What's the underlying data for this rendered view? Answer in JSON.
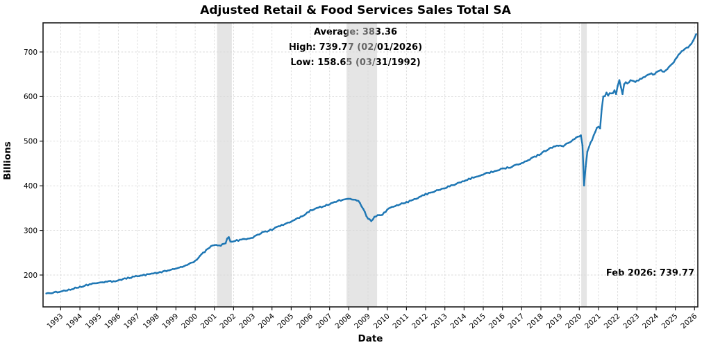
{
  "title": "Adjusted Retail & Food Services Sales Total SA",
  "annotations": {
    "average_line": "Average: 383.36",
    "high_line": "High: 739.77 (02/01/2026)",
    "low_line": "Low: 158.65 (03/31/1992)",
    "last_point_label": "Feb 2026: 739.77"
  },
  "axes": {
    "x_label": "Date",
    "y_label": "Billions",
    "y_ticks": [
      200,
      300,
      400,
      500,
      600,
      700
    ],
    "x_ticks": [
      1993,
      1994,
      1995,
      1996,
      1997,
      1998,
      1999,
      2000,
      2001,
      2002,
      2003,
      2004,
      2005,
      2006,
      2007,
      2008,
      2009,
      2010,
      2011,
      2012,
      2013,
      2014,
      2015,
      2016,
      2017,
      2018,
      2019,
      2020,
      2021,
      2022,
      2023,
      2024,
      2025,
      2026
    ]
  },
  "chart_data": {
    "type": "line",
    "title": "Adjusted Retail & Food Services Sales Total SA",
    "xlabel": "Date",
    "ylabel": "Billions",
    "xlim": [
      1992.08,
      2026.17
    ],
    "ylim": [
      128.6,
      765.2
    ],
    "grid": true,
    "line_color": "#1f77b4",
    "band_color": "#cccccc",
    "grid_color": "#d9d9d9",
    "frame_color": "#1a1a1a",
    "stats": {
      "average": 383.36,
      "high": 739.77,
      "high_date": "02/01/2026",
      "low": 158.65,
      "low_date": "03/31/1992",
      "last_value": 739.77,
      "last_period": "Feb 2026"
    },
    "recession_bands": [
      [
        2001.14,
        2001.91
      ],
      [
        2007.88,
        2009.47
      ],
      [
        2020.1,
        2020.39
      ]
    ],
    "series": [
      {
        "name": "Adjusted Retail & Food Services Sales Total SA",
        "points": [
          [
            1992.25,
            158.65
          ],
          [
            1992.6,
            160.5
          ],
          [
            1993,
            163
          ],
          [
            1993.5,
            168
          ],
          [
            1994,
            173
          ],
          [
            1994.5,
            179
          ],
          [
            1995,
            182.5
          ],
          [
            1995.5,
            185
          ],
          [
            1996,
            188
          ],
          [
            1996.5,
            193
          ],
          [
            1997,
            198
          ],
          [
            1997.5,
            201
          ],
          [
            1998,
            205
          ],
          [
            1998.5,
            209
          ],
          [
            1999,
            214
          ],
          [
            1999.5,
            221
          ],
          [
            2000,
            231
          ],
          [
            2000.4,
            249
          ],
          [
            2000.8,
            263
          ],
          [
            2001,
            268
          ],
          [
            2001.3,
            266
          ],
          [
            2001.6,
            271
          ],
          [
            2001.72,
            288
          ],
          [
            2001.85,
            273
          ],
          [
            2002,
            276
          ],
          [
            2002.5,
            280
          ],
          [
            2003,
            284
          ],
          [
            2003.5,
            295
          ],
          [
            2004,
            302
          ],
          [
            2004.5,
            312
          ],
          [
            2005,
            320
          ],
          [
            2005.5,
            330
          ],
          [
            2005.75,
            337
          ],
          [
            2006,
            345
          ],
          [
            2006.5,
            352
          ],
          [
            2007,
            359
          ],
          [
            2007.5,
            367
          ],
          [
            2007.92,
            371
          ],
          [
            2008.2,
            369
          ],
          [
            2008.5,
            366
          ],
          [
            2008.7,
            352
          ],
          [
            2009,
            326
          ],
          [
            2009.2,
            320
          ],
          [
            2009.35,
            331
          ],
          [
            2009.55,
            335
          ],
          [
            2009.7,
            332
          ],
          [
            2010,
            347
          ],
          [
            2010.5,
            356
          ],
          [
            2011,
            363
          ],
          [
            2011.5,
            371
          ],
          [
            2012,
            381
          ],
          [
            2012.5,
            388
          ],
          [
            2013,
            395
          ],
          [
            2013.5,
            403
          ],
          [
            2014,
            411
          ],
          [
            2014.5,
            419
          ],
          [
            2015,
            426
          ],
          [
            2015.5,
            432
          ],
          [
            2016,
            438
          ],
          [
            2016.5,
            443
          ],
          [
            2017,
            451
          ],
          [
            2017.5,
            461
          ],
          [
            2018,
            472
          ],
          [
            2018.5,
            486
          ],
          [
            2019,
            490
          ],
          [
            2019.15,
            487
          ],
          [
            2019.4,
            496
          ],
          [
            2019.7,
            503
          ],
          [
            2019.95,
            510
          ],
          [
            2020.08,
            514
          ],
          [
            2020.17,
            490
          ],
          [
            2020.25,
            400.5
          ],
          [
            2020.33,
            442
          ],
          [
            2020.42,
            478
          ],
          [
            2020.58,
            495
          ],
          [
            2020.75,
            512
          ],
          [
            2020.92,
            530
          ],
          [
            2021,
            533
          ],
          [
            2021.05,
            524
          ],
          [
            2021.13,
            536
          ],
          [
            2021.2,
            605
          ],
          [
            2021.3,
            596
          ],
          [
            2021.4,
            611
          ],
          [
            2021.5,
            603
          ],
          [
            2021.6,
            610
          ],
          [
            2021.7,
            605
          ],
          [
            2021.83,
            614
          ],
          [
            2021.92,
            606
          ],
          [
            2022,
            624
          ],
          [
            2022.08,
            638
          ],
          [
            2022.25,
            605
          ],
          [
            2022.35,
            633
          ],
          [
            2022.5,
            629
          ],
          [
            2022.7,
            637
          ],
          [
            2022.9,
            633
          ],
          [
            2023.1,
            636
          ],
          [
            2023.3,
            643
          ],
          [
            2023.5,
            647
          ],
          [
            2023.7,
            652
          ],
          [
            2023.9,
            650
          ],
          [
            2024,
            654
          ],
          [
            2024.2,
            659
          ],
          [
            2024.4,
            656
          ],
          [
            2024.6,
            663
          ],
          [
            2024.75,
            669
          ],
          [
            2024.9,
            677
          ],
          [
            2025,
            683
          ],
          [
            2025.2,
            696
          ],
          [
            2025.35,
            702
          ],
          [
            2025.5,
            708
          ],
          [
            2025.65,
            709
          ],
          [
            2025.8,
            716
          ],
          [
            2025.92,
            724
          ],
          [
            2026,
            731
          ],
          [
            2026.083,
            739.77
          ]
        ]
      }
    ]
  }
}
